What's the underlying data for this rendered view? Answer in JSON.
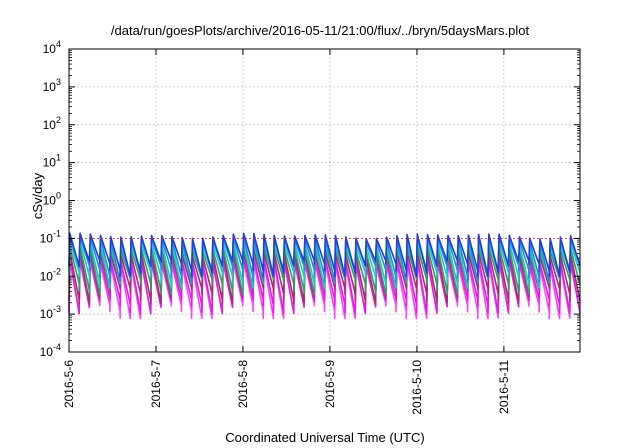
{
  "chart_data": {
    "type": "line",
    "title": "/data/run/goesPlots/archive/2016-05-11/21:00/flux/../bryn/5daysMars.plot",
    "xlabel": "Coordinated Universal Time (UTC)",
    "ylabel": "cSv/day",
    "y_scale": "log",
    "ylim": [
      0.0001,
      10000
    ],
    "y_ticks": [
      {
        "base": "10",
        "exp": "-4",
        "value": 0.0001
      },
      {
        "base": "10",
        "exp": "-3",
        "value": 0.001
      },
      {
        "base": "10",
        "exp": "-2",
        "value": 0.01
      },
      {
        "base": "10",
        "exp": "-1",
        "value": 0.1
      },
      {
        "base": "10",
        "exp": "0",
        "value": 1
      },
      {
        "base": "10",
        "exp": "1",
        "value": 10
      },
      {
        "base": "10",
        "exp": "2",
        "value": 100
      },
      {
        "base": "10",
        "exp": "3",
        "value": 1000
      },
      {
        "base": "10",
        "exp": "4",
        "value": 10000
      }
    ],
    "xlim": [
      "2016-05-06 00:00",
      "2016-05-11 21:00"
    ],
    "x_ticks": [
      "2016-5-6",
      "2016-5-7",
      "2016-5-8",
      "2016-5-9",
      "2016-5-10",
      "2016-5-11"
    ],
    "grid": true,
    "reference_line": {
      "value": 0.1,
      "color": "#e02020"
    },
    "sawtooth_cycles": 50,
    "series": [
      {
        "color": "#1f3fd8",
        "peak": 0.12,
        "trough": 0.018
      },
      {
        "color": "#2a8ad8",
        "peak": 0.1,
        "trough": 0.013
      },
      {
        "color": "#20c8c8",
        "peak": 0.075,
        "trough": 0.009
      },
      {
        "color": "#30a060",
        "peak": 0.055,
        "trough": 0.006
      },
      {
        "color": "#a0306a",
        "peak": 0.04,
        "trough": 0.0035
      },
      {
        "color": "#e020e0",
        "peak": 0.028,
        "trough": 0.0018
      },
      {
        "color": "#ff40ff",
        "peak": 0.022,
        "trough": 0.0013
      }
    ]
  }
}
